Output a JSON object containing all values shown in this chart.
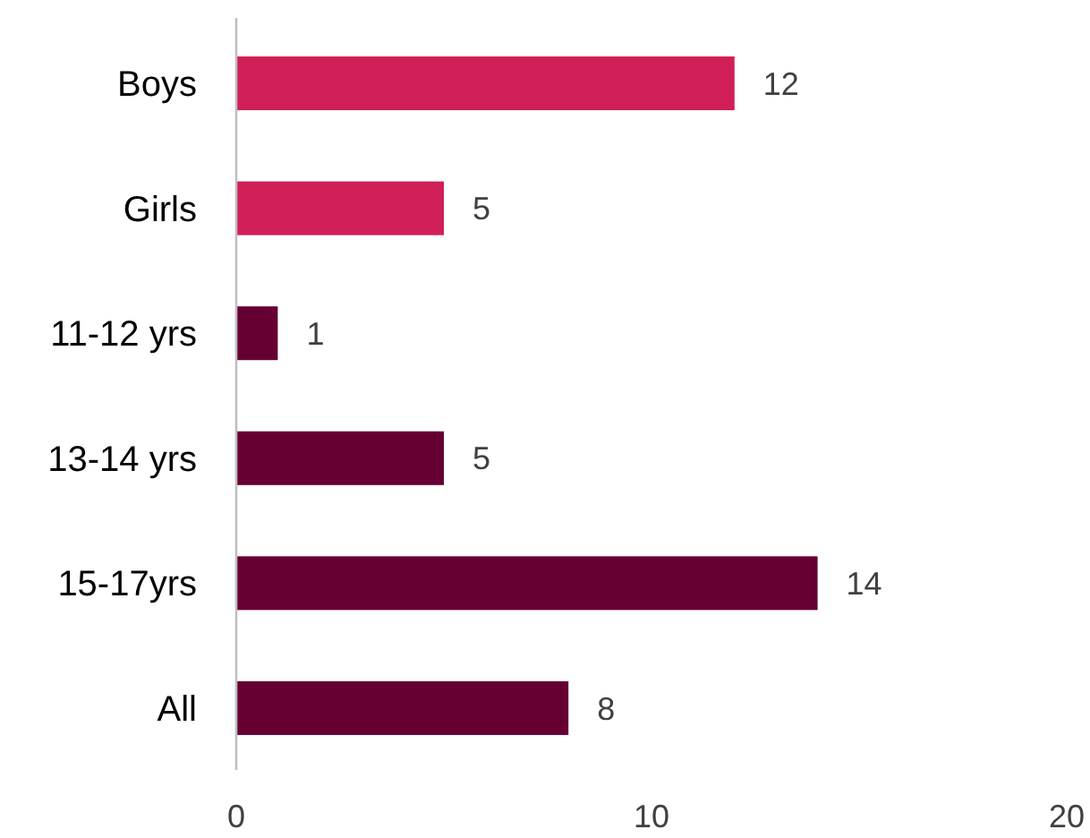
{
  "chart_data": {
    "type": "bar",
    "orientation": "horizontal",
    "categories": [
      "Boys",
      "Girls",
      "11-12 yrs",
      "13-14 yrs",
      "15-17yrs",
      "All"
    ],
    "values": [
      12,
      5,
      1,
      5,
      14,
      8
    ],
    "colors": [
      "#d01f57",
      "#d01f57",
      "#660033",
      "#660033",
      "#660033",
      "#660033"
    ],
    "xlim": [
      0,
      20
    ],
    "xticks": [
      0,
      10,
      20
    ],
    "grid": false,
    "data_labels": true
  }
}
